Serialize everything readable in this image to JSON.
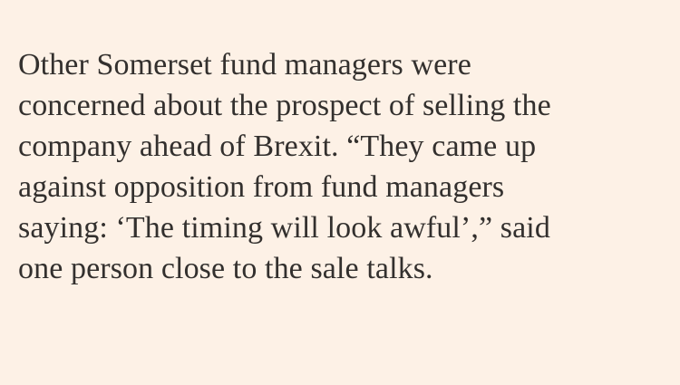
{
  "article": {
    "paragraph_lines": [
      "Other Somerset fund managers were",
      "concerned about the prospect of selling the",
      "company ahead of Brexit. “They came up",
      "against opposition from fund managers",
      "saying: ‘The timing will look awful’,” said",
      "one person close to the sale talks."
    ]
  },
  "colors": {
    "background": "#fdf1e6",
    "text": "#33302e"
  }
}
